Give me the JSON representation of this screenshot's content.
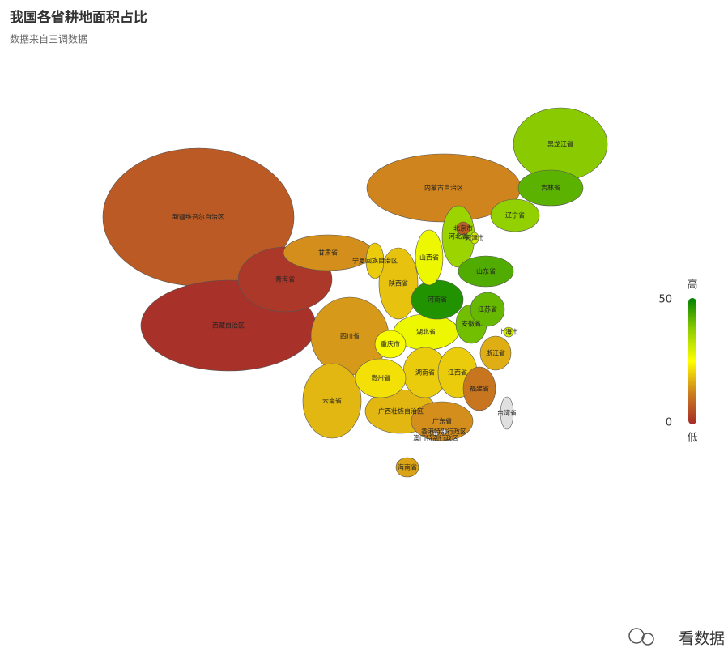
{
  "chart_data": {
    "type": "map",
    "title": "我国各省耕地面积占比",
    "subtitle": "数据来自三调数据",
    "regions": [
      {
        "name": "内蒙古自治区",
        "value": 13
      },
      {
        "name": "新疆维吾尔自治区",
        "value": 7
      },
      {
        "name": "西藏自治区",
        "value": 1
      },
      {
        "name": "黑龙江省",
        "value": 38
      },
      {
        "name": "青海省",
        "value": 2
      },
      {
        "name": "甘肃省",
        "value": 14
      },
      {
        "name": "四川省",
        "value": 15
      },
      {
        "name": "云南省",
        "value": 18
      },
      {
        "name": "吉林省",
        "value": 42
      },
      {
        "name": "辽宁省",
        "value": 37
      },
      {
        "name": "广西壮族自治区",
        "value": 18
      },
      {
        "name": "广东省",
        "value": 14
      },
      {
        "name": "陕西省",
        "value": 19
      },
      {
        "name": "湖北省",
        "value": 27
      },
      {
        "name": "湖南省",
        "value": 20
      },
      {
        "name": "江西省",
        "value": 20
      },
      {
        "name": "贵州省",
        "value": 22
      },
      {
        "name": "河北省",
        "value": 36
      },
      {
        "name": "河南省",
        "value": 47
      },
      {
        "name": "山东省",
        "value": 43
      },
      {
        "name": "山西省",
        "value": 27
      },
      {
        "name": "福建省",
        "value": 11
      },
      {
        "name": "浙江省",
        "value": 17
      },
      {
        "name": "安徽省",
        "value": 40
      },
      {
        "name": "江苏省",
        "value": 41
      },
      {
        "name": "重庆市",
        "value": 26
      },
      {
        "name": "宁夏回族自治区",
        "value": 20
      },
      {
        "name": "海南省",
        "value": 16
      },
      {
        "name": "台湾省",
        "value": null
      },
      {
        "name": "北京市",
        "value": 8
      },
      {
        "name": "天津市",
        "value": 30
      },
      {
        "name": "上海市",
        "value": 30
      },
      {
        "name": "香港特别行政区",
        "value": null
      },
      {
        "name": "澳门特别行政区",
        "value": null
      }
    ],
    "visual_map": {
      "range": [
        0,
        50
      ],
      "text_high": "高",
      "text_low": "低",
      "colors": [
        "#a52a2a",
        "#cd7f1f",
        "#ffff00",
        "#8fce00",
        "#008000"
      ],
      "no_data_color": "#e0e0e0"
    },
    "watermark": "看数据"
  }
}
